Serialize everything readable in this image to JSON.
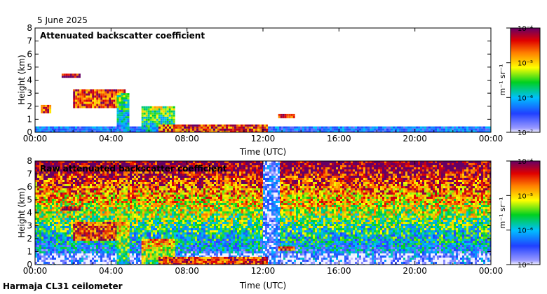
{
  "date": "5 June 2025",
  "footer": "Harmaja CL31 ceilometer",
  "chart_data": [
    {
      "type": "heatmap",
      "title": "Attenuated backscatter coefficient",
      "xlabel": "Time (UTC)",
      "ylabel": "Height (km)",
      "x_ticks": [
        "00:00",
        "04:00",
        "08:00",
        "12:00",
        "16:00",
        "20:00",
        "00:00"
      ],
      "y_ticks": [
        "0",
        "1",
        "2",
        "3",
        "4",
        "5",
        "6",
        "7",
        "8"
      ],
      "ylim": [
        0,
        8
      ],
      "colorbar": {
        "label": "m⁻¹ sr⁻¹",
        "scale": "log",
        "ticks": [
          "10⁻⁷",
          "10⁻⁶",
          "10⁻⁵",
          "10⁻⁴"
        ]
      },
      "features": [
        {
          "kind": "surface_layer",
          "t_start": 0,
          "t_end": 24,
          "h_top": 0.45,
          "value_exp": -6.5
        },
        {
          "kind": "cloud",
          "t_start": 0.3,
          "t_end": 0.8,
          "h_top": 2.1,
          "h_bottom": 1.6,
          "value_exp": -4.6
        },
        {
          "kind": "cloud",
          "t_start": 1.4,
          "t_end": 2.3,
          "h_top": 4.5,
          "h_bottom": 4.2,
          "value_exp": -4.2
        },
        {
          "kind": "cloud",
          "t_start": 2.0,
          "t_end": 4.7,
          "h_top": 3.3,
          "h_bottom": 2.0,
          "value_exp": -4.5
        },
        {
          "kind": "fog",
          "t_start": 4.3,
          "t_end": 4.9,
          "h_top": 3.0,
          "h_bottom": 0,
          "value_exp": -5.5
        },
        {
          "kind": "fog",
          "t_start": 5.6,
          "t_end": 7.3,
          "h_top": 2.0,
          "h_bottom": 0,
          "value_exp": -5.3
        },
        {
          "kind": "low_cloud",
          "t_start": 6.5,
          "t_end": 12.2,
          "h_top": 0.6,
          "h_bottom": 0,
          "value_exp": -4.5
        },
        {
          "kind": "cloud",
          "t_start": 12.8,
          "t_end": 13.6,
          "h_top": 1.4,
          "h_bottom": 1.1,
          "value_exp": -4.6
        }
      ]
    },
    {
      "type": "heatmap",
      "title": "Raw attenuated backscatter coefficient",
      "xlabel": "Time (UTC)",
      "ylabel": "Height (km)",
      "x_ticks": [
        "00:00",
        "04:00",
        "08:00",
        "12:00",
        "16:00",
        "20:00",
        "00:00"
      ],
      "y_ticks": [
        "0",
        "1",
        "2",
        "3",
        "4",
        "5",
        "6",
        "7",
        "8"
      ],
      "ylim": [
        0,
        8
      ],
      "colorbar": {
        "label": "m⁻¹ sr⁻¹",
        "scale": "log",
        "ticks": [
          "10⁻⁷",
          "10⁻⁶",
          "10⁻⁵",
          "10⁻⁴"
        ]
      },
      "features": [
        {
          "kind": "noise_background",
          "t_start": 0,
          "t_end": 24,
          "h_top": 8,
          "h_bottom": 0,
          "value_exp": -5.5
        },
        {
          "kind": "data_gap",
          "t_start": 12.0,
          "t_end": 12.8,
          "h_top": 8,
          "h_bottom": 0,
          "value_exp": -6.9
        },
        {
          "kind": "cloud",
          "t_start": 1.4,
          "t_end": 2.3,
          "h_top": 4.5,
          "h_bottom": 4.2,
          "value_exp": -4.2
        },
        {
          "kind": "cloud",
          "t_start": 2.0,
          "t_end": 4.7,
          "h_top": 3.3,
          "h_bottom": 2.0,
          "value_exp": -4.5
        },
        {
          "kind": "fog",
          "t_start": 4.3,
          "t_end": 4.9,
          "h_top": 3.0,
          "h_bottom": 0,
          "value_exp": -5.0
        },
        {
          "kind": "fog",
          "t_start": 5.6,
          "t_end": 7.3,
          "h_top": 2.0,
          "h_bottom": 0,
          "value_exp": -4.8
        },
        {
          "kind": "low_cloud",
          "t_start": 6.5,
          "t_end": 12.2,
          "h_top": 0.6,
          "h_bottom": 0,
          "value_exp": -4.5
        },
        {
          "kind": "cloud",
          "t_start": 12.8,
          "t_end": 13.6,
          "h_top": 1.4,
          "h_bottom": 1.1,
          "value_exp": -4.6
        }
      ]
    }
  ]
}
